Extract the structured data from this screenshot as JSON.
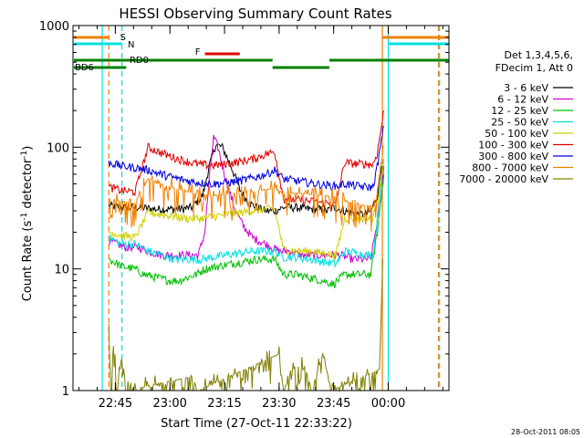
{
  "chart_data": {
    "type": "line",
    "title": "HESSI Observing Summary Count Rates",
    "xlabel": "Start Time (27-Oct-11 22:33:22)",
    "ylabel_main": "Count Rate (s",
    "ylabel_sup1": "-1",
    "ylabel_mid": " detector",
    "ylabel_sup2": "-1",
    "ylabel_end": ")",
    "y_scale": "log",
    "ylim": [
      1,
      1000
    ],
    "xlim": [
      22.556,
      24.278
    ],
    "x_ticks": [
      {
        "t": 22.75,
        "label": "22:45"
      },
      {
        "t": 23.0,
        "label": "23:00"
      },
      {
        "t": 23.25,
        "label": "23:15"
      },
      {
        "t": 23.5,
        "label": "23:30"
      },
      {
        "t": 23.75,
        "label": "23:45"
      },
      {
        "t": 24.0,
        "label": "00:00"
      }
    ],
    "y_ticks": [
      {
        "v": 1,
        "label": "1"
      },
      {
        "v": 10,
        "label": "10"
      },
      {
        "v": 100,
        "label": "100"
      },
      {
        "v": 1000,
        "label": "1000"
      }
    ],
    "legend": {
      "placement": "right",
      "header": [
        "Det 1,3,4,5,6,",
        "FDecim 1, Att 0"
      ]
    },
    "series": [
      {
        "name": "3 - 6 keV",
        "color": "#000000",
        "points": [
          [
            22.72,
            33
          ],
          [
            22.78,
            32
          ],
          [
            22.83,
            32
          ],
          [
            22.87,
            32
          ],
          [
            22.93,
            31
          ],
          [
            23.0,
            31
          ],
          [
            23.05,
            31
          ],
          [
            23.1,
            32
          ],
          [
            23.15,
            40
          ],
          [
            23.18,
            70
          ],
          [
            23.21,
            105
          ],
          [
            23.24,
            100
          ],
          [
            23.28,
            70
          ],
          [
            23.32,
            45
          ],
          [
            23.36,
            35
          ],
          [
            23.4,
            32
          ],
          [
            23.44,
            30
          ],
          [
            23.48,
            30
          ],
          [
            23.52,
            32
          ],
          [
            23.58,
            32
          ],
          [
            23.63,
            31
          ],
          [
            23.68,
            31
          ],
          [
            23.72,
            30
          ],
          [
            23.75,
            32
          ],
          [
            23.8,
            30
          ],
          [
            23.86,
            28
          ],
          [
            23.9,
            28
          ],
          [
            23.92,
            30
          ],
          [
            23.95,
            40
          ],
          [
            23.97,
            70
          ]
        ]
      },
      {
        "name": "6 - 12 keV",
        "color": "#d000d0",
        "points": [
          [
            22.72,
            17
          ],
          [
            22.8,
            15
          ],
          [
            22.86,
            15
          ],
          [
            22.9,
            14
          ],
          [
            22.96,
            13
          ],
          [
            23.02,
            13
          ],
          [
            23.08,
            13
          ],
          [
            23.13,
            13
          ],
          [
            23.16,
            20
          ],
          [
            23.18,
            55
          ],
          [
            23.2,
            120
          ],
          [
            23.22,
            100
          ],
          [
            23.24,
            70
          ],
          [
            23.27,
            45
          ],
          [
            23.3,
            30
          ],
          [
            23.34,
            22
          ],
          [
            23.38,
            18
          ],
          [
            23.44,
            16
          ],
          [
            23.5,
            14
          ],
          [
            23.55,
            14
          ],
          [
            23.6,
            13
          ],
          [
            23.66,
            13
          ],
          [
            23.72,
            13
          ],
          [
            23.78,
            13
          ],
          [
            23.84,
            12
          ],
          [
            23.9,
            12
          ],
          [
            23.92,
            12
          ],
          [
            23.95,
            25
          ],
          [
            23.98,
            70
          ]
        ]
      },
      {
        "name": "12 - 25 keV",
        "color": "#00c000",
        "points": [
          [
            22.72,
            12
          ],
          [
            22.78,
            10.5
          ],
          [
            22.84,
            10
          ],
          [
            22.88,
            9
          ],
          [
            22.94,
            8.5
          ],
          [
            23.0,
            8
          ],
          [
            23.04,
            8
          ],
          [
            23.08,
            8.5
          ],
          [
            23.12,
            9
          ],
          [
            23.16,
            10
          ],
          [
            23.22,
            10.5
          ],
          [
            23.28,
            11
          ],
          [
            23.34,
            11.5
          ],
          [
            23.4,
            12
          ],
          [
            23.44,
            12
          ],
          [
            23.48,
            12
          ],
          [
            23.52,
            9
          ],
          [
            23.58,
            9
          ],
          [
            23.64,
            8.5
          ],
          [
            23.7,
            8
          ],
          [
            23.75,
            7.5
          ],
          [
            23.8,
            9
          ],
          [
            23.86,
            9
          ],
          [
            23.9,
            9
          ],
          [
            23.92,
            9
          ],
          [
            23.95,
            20
          ],
          [
            23.98,
            60
          ]
        ]
      },
      {
        "name": "25 - 50 keV",
        "color": "#00e0e0",
        "points": [
          [
            22.72,
            18
          ],
          [
            22.78,
            16
          ],
          [
            22.84,
            16
          ],
          [
            22.9,
            14
          ],
          [
            22.96,
            13
          ],
          [
            23.02,
            12
          ],
          [
            23.08,
            12
          ],
          [
            23.14,
            12
          ],
          [
            23.2,
            12.5
          ],
          [
            23.26,
            13
          ],
          [
            23.32,
            13.5
          ],
          [
            23.38,
            14
          ],
          [
            23.44,
            14
          ],
          [
            23.48,
            14
          ],
          [
            23.52,
            12.5
          ],
          [
            23.58,
            12.5
          ],
          [
            23.64,
            12
          ],
          [
            23.7,
            11.5
          ],
          [
            23.76,
            11
          ],
          [
            23.8,
            14
          ],
          [
            23.86,
            13.5
          ],
          [
            23.9,
            13
          ],
          [
            23.93,
            13
          ],
          [
            23.95,
            25
          ],
          [
            23.98,
            80
          ]
        ]
      },
      {
        "name": "50 - 100 keV",
        "color": "#d0d000",
        "points": [
          [
            22.72,
            20
          ],
          [
            22.78,
            19
          ],
          [
            22.84,
            18
          ],
          [
            22.9,
            29
          ],
          [
            22.96,
            28
          ],
          [
            23.02,
            27
          ],
          [
            23.08,
            26
          ],
          [
            23.14,
            26
          ],
          [
            23.2,
            27
          ],
          [
            23.26,
            28
          ],
          [
            23.32,
            29
          ],
          [
            23.38,
            30
          ],
          [
            23.44,
            31
          ],
          [
            23.48,
            31
          ],
          [
            23.52,
            14.5
          ],
          [
            23.58,
            14
          ],
          [
            23.64,
            14
          ],
          [
            23.7,
            13.5
          ],
          [
            23.76,
            13
          ],
          [
            23.8,
            26
          ],
          [
            23.86,
            26
          ],
          [
            23.9,
            26
          ],
          [
            23.93,
            26
          ],
          [
            23.95,
            35
          ],
          [
            23.98,
            80
          ]
        ]
      },
      {
        "name": "100 - 300 keV",
        "color": "#e00000",
        "points": [
          [
            22.72,
            47
          ],
          [
            22.78,
            44
          ],
          [
            22.84,
            43
          ],
          [
            22.9,
            100
          ],
          [
            22.96,
            90
          ],
          [
            23.02,
            82
          ],
          [
            23.08,
            76
          ],
          [
            23.14,
            72
          ],
          [
            23.2,
            71
          ],
          [
            23.26,
            73
          ],
          [
            23.32,
            76
          ],
          [
            23.38,
            80
          ],
          [
            23.44,
            88
          ],
          [
            23.48,
            92
          ],
          [
            23.52,
            38
          ],
          [
            23.58,
            37
          ],
          [
            23.64,
            36
          ],
          [
            23.7,
            35
          ],
          [
            23.76,
            34
          ],
          [
            23.8,
            75
          ],
          [
            23.86,
            73
          ],
          [
            23.9,
            73
          ],
          [
            23.93,
            72
          ],
          [
            23.95,
            90
          ],
          [
            23.98,
            200
          ]
        ]
      },
      {
        "name": "300 - 800 keV",
        "color": "#0000e0",
        "points": [
          [
            22.72,
            75
          ],
          [
            22.78,
            70
          ],
          [
            22.84,
            68
          ],
          [
            22.9,
            65
          ],
          [
            22.96,
            60
          ],
          [
            23.02,
            56
          ],
          [
            23.08,
            53
          ],
          [
            23.14,
            51
          ],
          [
            23.2,
            50
          ],
          [
            23.26,
            51
          ],
          [
            23.32,
            53
          ],
          [
            23.38,
            56
          ],
          [
            23.44,
            60
          ],
          [
            23.48,
            65
          ],
          [
            23.52,
            55
          ],
          [
            23.58,
            53
          ],
          [
            23.64,
            51
          ],
          [
            23.7,
            49
          ],
          [
            23.76,
            48
          ],
          [
            23.8,
            50
          ],
          [
            23.86,
            48
          ],
          [
            23.9,
            47
          ],
          [
            23.93,
            47
          ],
          [
            23.95,
            70
          ],
          [
            23.98,
            150
          ]
        ]
      },
      {
        "name": "800 - 7000 keV",
        "color": "#f08000",
        "points": [
          [
            22.72,
            38
          ],
          [
            22.78,
            36
          ],
          [
            22.84,
            35
          ],
          [
            22.9,
            55
          ],
          [
            22.96,
            50
          ],
          [
            23.02,
            46
          ],
          [
            23.08,
            43
          ],
          [
            23.14,
            41
          ],
          [
            23.2,
            40
          ],
          [
            23.26,
            41
          ],
          [
            23.32,
            42
          ],
          [
            23.38,
            43
          ],
          [
            23.44,
            45
          ],
          [
            23.48,
            46
          ],
          [
            23.52,
            42
          ],
          [
            23.58,
            42
          ],
          [
            23.64,
            41
          ],
          [
            23.7,
            40
          ],
          [
            23.76,
            39
          ],
          [
            23.8,
            36
          ],
          [
            23.86,
            34
          ],
          [
            23.9,
            33
          ],
          [
            23.93,
            33
          ],
          [
            23.95,
            45
          ],
          [
            23.98,
            100
          ]
        ]
      },
      {
        "name": "7000 - 20000 keV",
        "color": "#808000",
        "points": [
          [
            22.72,
            3
          ],
          [
            22.73,
            1
          ],
          [
            22.745,
            2.5
          ],
          [
            22.76,
            1
          ],
          [
            22.78,
            2
          ],
          [
            22.8,
            1
          ],
          [
            23.1,
            1.3
          ],
          [
            23.13,
            1
          ],
          [
            23.5,
            2
          ],
          [
            23.52,
            1
          ],
          [
            23.6,
            2
          ],
          [
            23.65,
            1
          ],
          [
            23.7,
            2
          ],
          [
            23.74,
            1
          ],
          [
            23.96,
            1.5
          ],
          [
            23.975,
            12
          ]
        ]
      }
    ],
    "annotations": {
      "saa_label": "S",
      "night_label": "N",
      "flare_label": "F",
      "rd0_label": "RD0",
      "bd6_label": "BD6"
    },
    "timestamp": "28-Oct-2011 08:05"
  }
}
